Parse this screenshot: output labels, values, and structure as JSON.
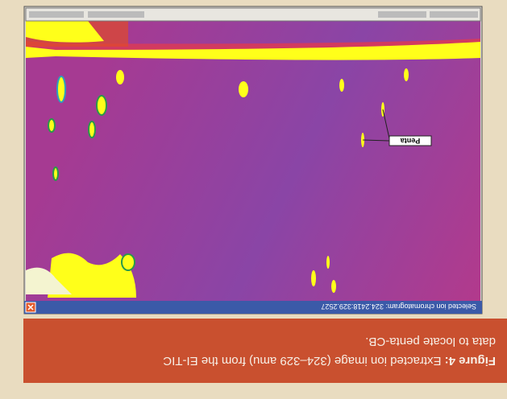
{
  "caption": {
    "label": "Figure 4:",
    "text": "Extracted ion image (324–329 amu) from the EI-TIC",
    "text2": "data to locate penta-CB."
  },
  "window": {
    "title": "Selected ion chromatogram: 324.2418:329.2527"
  },
  "annotation": {
    "label": "Penta"
  }
}
